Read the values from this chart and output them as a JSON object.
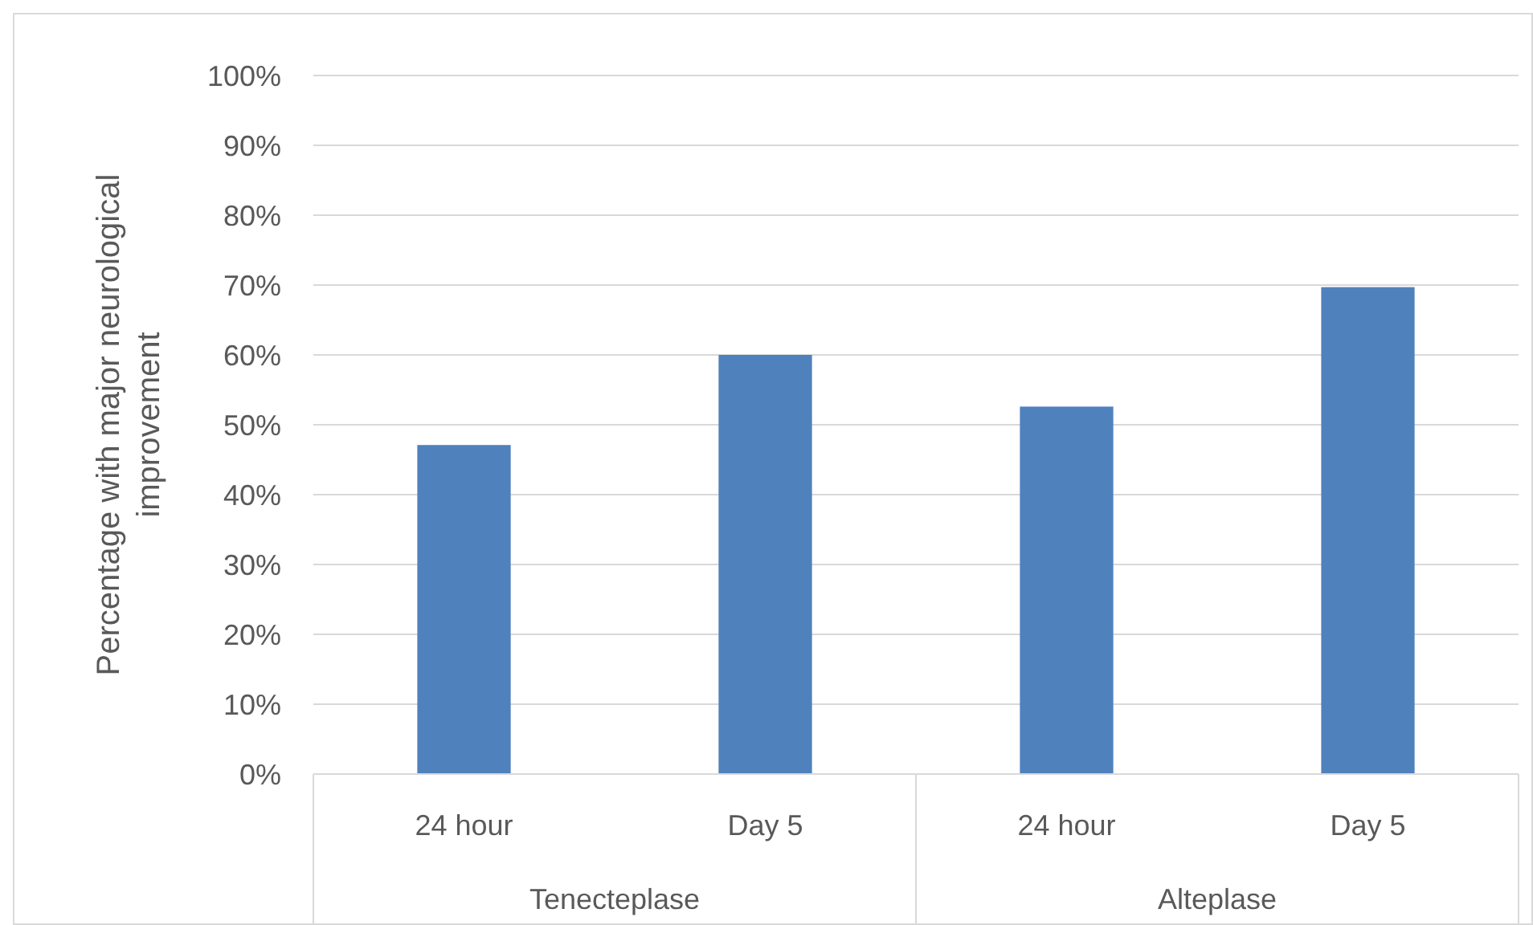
{
  "chart_data": {
    "type": "bar",
    "ylabel": "Percentage with major neurological improvement",
    "categories": [
      "24 hour",
      "Day 5",
      "24 hour",
      "Day 5"
    ],
    "values": [
      47.1,
      60,
      52.6,
      69.7
    ],
    "color": "#4f81bd",
    "ylim": [
      0,
      100
    ],
    "yticks": [
      {
        "value": 0,
        "label": "0%"
      },
      {
        "value": 10,
        "label": "10%"
      },
      {
        "value": 20,
        "label": "20%"
      },
      {
        "value": 30,
        "label": "30%"
      },
      {
        "value": 40,
        "label": "40%"
      },
      {
        "value": 50,
        "label": "50%"
      },
      {
        "value": 60,
        "label": "60%"
      },
      {
        "value": 70,
        "label": "70%"
      },
      {
        "value": 80,
        "label": "80%"
      },
      {
        "value": 90,
        "label": "90%"
      },
      {
        "value": 100,
        "label": "100%"
      }
    ],
    "grid": "y",
    "annotations": [
      "Tenecteplase",
      "Alteplase"
    ]
  }
}
